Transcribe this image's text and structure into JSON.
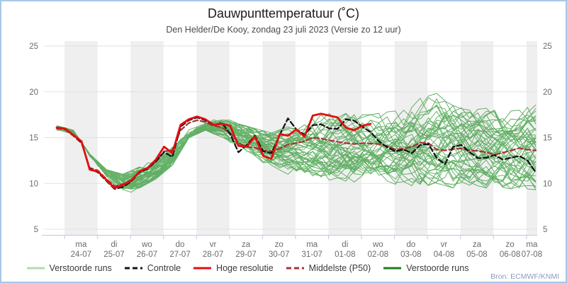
{
  "header": {
    "title": "Dauwpunttemperatuur (˚C)",
    "subtitle": "Den Helder/De Kooy, zondag 23 juli 2023 (Versie zo 12 uur)"
  },
  "source_note": "Bron: ECMWF/KNMI",
  "style": {
    "frame_border": "#a9c7e8",
    "band": "#efefef",
    "grid": "#e2e2e2",
    "axis": "#b9cbe3",
    "tick_text": "#6b6b6b",
    "title_color": "#1c1c1c",
    "subtitle_color": "#4a4a4a",
    "source_color": "#8a9cb8"
  },
  "legend": {
    "items": [
      {
        "label": "Verstoorde runs",
        "color": "#b5d9ae",
        "dash": false
      },
      {
        "label": "Controle",
        "color": "#141414",
        "dash": true
      },
      {
        "label": "Hoge resolutie",
        "color": "#e30f0f",
        "dash": false
      },
      {
        "label": "Middelste (P50)",
        "color": "#a63333",
        "dash": true
      },
      {
        "label": "Verstoorde runs",
        "color": "#1e7d1e",
        "dash": false
      }
    ]
  },
  "chart_data": {
    "type": "line",
    "title": "Dauwpunttemperatuur (˚C)",
    "xlabel": "",
    "ylabel": "",
    "ylim": [
      4.4,
      25.6
    ],
    "yticks": [
      5,
      10,
      15,
      20,
      25
    ],
    "grid": "horizontal",
    "legend_position": "bottom",
    "time": {
      "first_point": "23-07 18:00",
      "step_hours": 6,
      "n_points": 59
    },
    "x_days": [
      {
        "dow": "ma",
        "date": "24-07",
        "shaded": true
      },
      {
        "dow": "di",
        "date": "25-07",
        "shaded": false
      },
      {
        "dow": "wo",
        "date": "26-07",
        "shaded": true
      },
      {
        "dow": "do",
        "date": "27-07",
        "shaded": false
      },
      {
        "dow": "vr",
        "date": "28-07",
        "shaded": true
      },
      {
        "dow": "za",
        "date": "29-07",
        "shaded": false
      },
      {
        "dow": "zo",
        "date": "30-07",
        "shaded": true
      },
      {
        "dow": "ma",
        "date": "31-07",
        "shaded": false
      },
      {
        "dow": "di",
        "date": "01-08",
        "shaded": true
      },
      {
        "dow": "wo",
        "date": "02-08",
        "shaded": false
      },
      {
        "dow": "do",
        "date": "03-08",
        "shaded": true
      },
      {
        "dow": "vr",
        "date": "04-08",
        "shaded": false
      },
      {
        "dow": "za",
        "date": "05-08",
        "shaded": true
      },
      {
        "dow": "zo",
        "date": "06-08",
        "shaded": false
      },
      {
        "dow": "ma",
        "date": "07-08",
        "shaded": true
      }
    ],
    "series": [
      {
        "name": "Middelste (P50)",
        "slug": "median",
        "color": "#a63333",
        "dash": [
          7,
          4
        ],
        "width": 2.2,
        "values": [
          16.0,
          15.9,
          15.2,
          14.4,
          11.7,
          11.4,
          10.5,
          9.7,
          9.9,
          10.4,
          11.2,
          11.7,
          12.4,
          13.5,
          13.6,
          15.8,
          16.6,
          16.9,
          16.7,
          16.3,
          16.1,
          15.5,
          14.4,
          14.0,
          13.9,
          13.6,
          13.5,
          13.8,
          14.25,
          14.4,
          14.6,
          15.0,
          14.9,
          14.7,
          14.55,
          14.4,
          14.3,
          14.4,
          14.35,
          14.3,
          14.1,
          13.7,
          13.8,
          14.0,
          14.45,
          14.4,
          13.7,
          13.6,
          13.75,
          13.8,
          13.6,
          13.55,
          13.4,
          13.15,
          13.35,
          13.6,
          13.85,
          13.7,
          13.6
        ]
      },
      {
        "name": "Controle",
        "slug": "control",
        "color": "#141414",
        "dash": [
          7,
          4
        ],
        "width": 2.3,
        "values": [
          16.1,
          15.95,
          15.3,
          14.5,
          11.6,
          11.2,
          10.3,
          9.4,
          9.6,
          10.2,
          11.2,
          11.6,
          12.4,
          13.4,
          12.9,
          16.2,
          16.9,
          17.2,
          16.9,
          16.35,
          16.6,
          15.4,
          13.4,
          14.2,
          15.2,
          13.5,
          13.3,
          15.3,
          17.1,
          15.9,
          15.3,
          16.35,
          16.45,
          16.0,
          15.95,
          17.0,
          16.85,
          16.2,
          15.6,
          14.6,
          13.95,
          13.5,
          13.7,
          13.3,
          14.2,
          14.3,
          12.8,
          12.1,
          14.0,
          14.2,
          13.4,
          12.75,
          12.8,
          13.1,
          12.6,
          12.8,
          13.0,
          12.5,
          11.2
        ]
      },
      {
        "name": "Hoge resolutie",
        "slug": "hires",
        "color": "#e30f0f",
        "dash": null,
        "width": 2.8,
        "values": [
          16.1,
          16.0,
          15.3,
          14.6,
          11.5,
          11.3,
          10.4,
          9.5,
          9.8,
          10.3,
          11.3,
          11.7,
          12.6,
          14.0,
          13.3,
          16.4,
          17.0,
          17.3,
          17.0,
          16.4,
          16.5,
          16.3,
          14.1,
          14.0,
          15.1,
          13.0,
          12.7,
          15.4,
          15.2,
          15.9,
          15.1,
          17.4,
          17.6,
          17.4,
          17.2,
          16.1,
          15.8,
          16.3,
          16.5
        ]
      }
    ],
    "ensemble": {
      "name": "Verstoorde runs",
      "color": "#3f9f43",
      "n_members": 50,
      "seed": 20230723,
      "step_hours": 12,
      "min": [
        15.8,
        14.8,
        10.8,
        9.0,
        8.0,
        9.5,
        10.5,
        12.0,
        15.0,
        15.8,
        14.8,
        12.8,
        12.0,
        11.0,
        11.0,
        10.5,
        10.0,
        10.5,
        10.0,
        10.0,
        9.8,
        10.0,
        9.5,
        10.0,
        9.5,
        9.8,
        9.5,
        9.3,
        9.5,
        9.3
      ],
      "max": [
        16.3,
        15.8,
        13.2,
        11.5,
        11.0,
        12.5,
        13.5,
        15.8,
        17.4,
        17.5,
        17.3,
        16.5,
        16.0,
        15.5,
        16.2,
        16.8,
        17.5,
        17.8,
        17.5,
        17.5,
        17.8,
        18.0,
        19.3,
        20.1,
        18.5,
        18.0,
        18.2,
        17.8,
        18.0,
        18.6
      ]
    }
  }
}
